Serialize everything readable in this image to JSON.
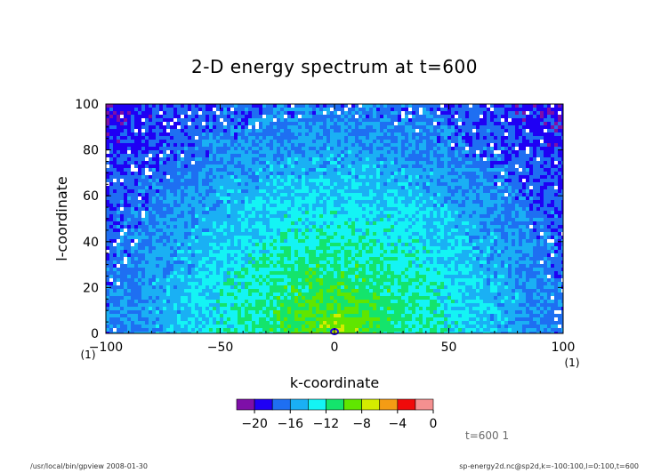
{
  "chart_data": {
    "type": "heatmap",
    "title": "2-D energy spectrum at t=600",
    "xlabel": "k-coordinate",
    "ylabel": "l-coordinate",
    "xlim": [
      -100,
      100
    ],
    "ylim": [
      0,
      100
    ],
    "x_ticks": [
      -100,
      -50,
      0,
      50,
      100
    ],
    "x_tick_labels": [
      "−100",
      "−50",
      "0",
      "50",
      "100"
    ],
    "y_ticks": [
      0,
      20,
      40,
      60,
      80,
      100
    ],
    "y_tick_labels": [
      "0",
      "20",
      "40",
      "60",
      "80",
      "100"
    ],
    "x_axis_unit_left": "(1)",
    "x_axis_unit_right": "(1)",
    "colorbar": {
      "levels": [
        -22,
        -20,
        -18,
        -16,
        -14,
        -12,
        -10,
        -8,
        -6,
        -4,
        -2,
        0
      ],
      "colors": [
        "#7e0fa8",
        "#1f00f4",
        "#1e6ff2",
        "#1ab0f4",
        "#14f4f4",
        "#14e46c",
        "#60e600",
        "#d4ec00",
        "#f49c14",
        "#f00a0a",
        "#f49090"
      ],
      "tick_values": [
        -20,
        -16,
        -12,
        -8,
        -4,
        0
      ],
      "tick_labels": [
        "−20",
        "−16",
        "−12",
        "−8",
        "−4",
        "0"
      ]
    },
    "field_description": {
      "peak": {
        "k": 0,
        "l": 0,
        "value": -8
      },
      "edge_value": -21,
      "grid_k": [
        -100,
        100
      ],
      "grid_l": [
        0,
        100
      ]
    }
  },
  "annotations": {
    "time_label": "t=600 1",
    "footer_left": "/usr/local/bin/gpview  2008-01-30",
    "footer_right": "sp-energy2d.nc@sp2d,k=-100:100,l=0:100,t=600"
  }
}
